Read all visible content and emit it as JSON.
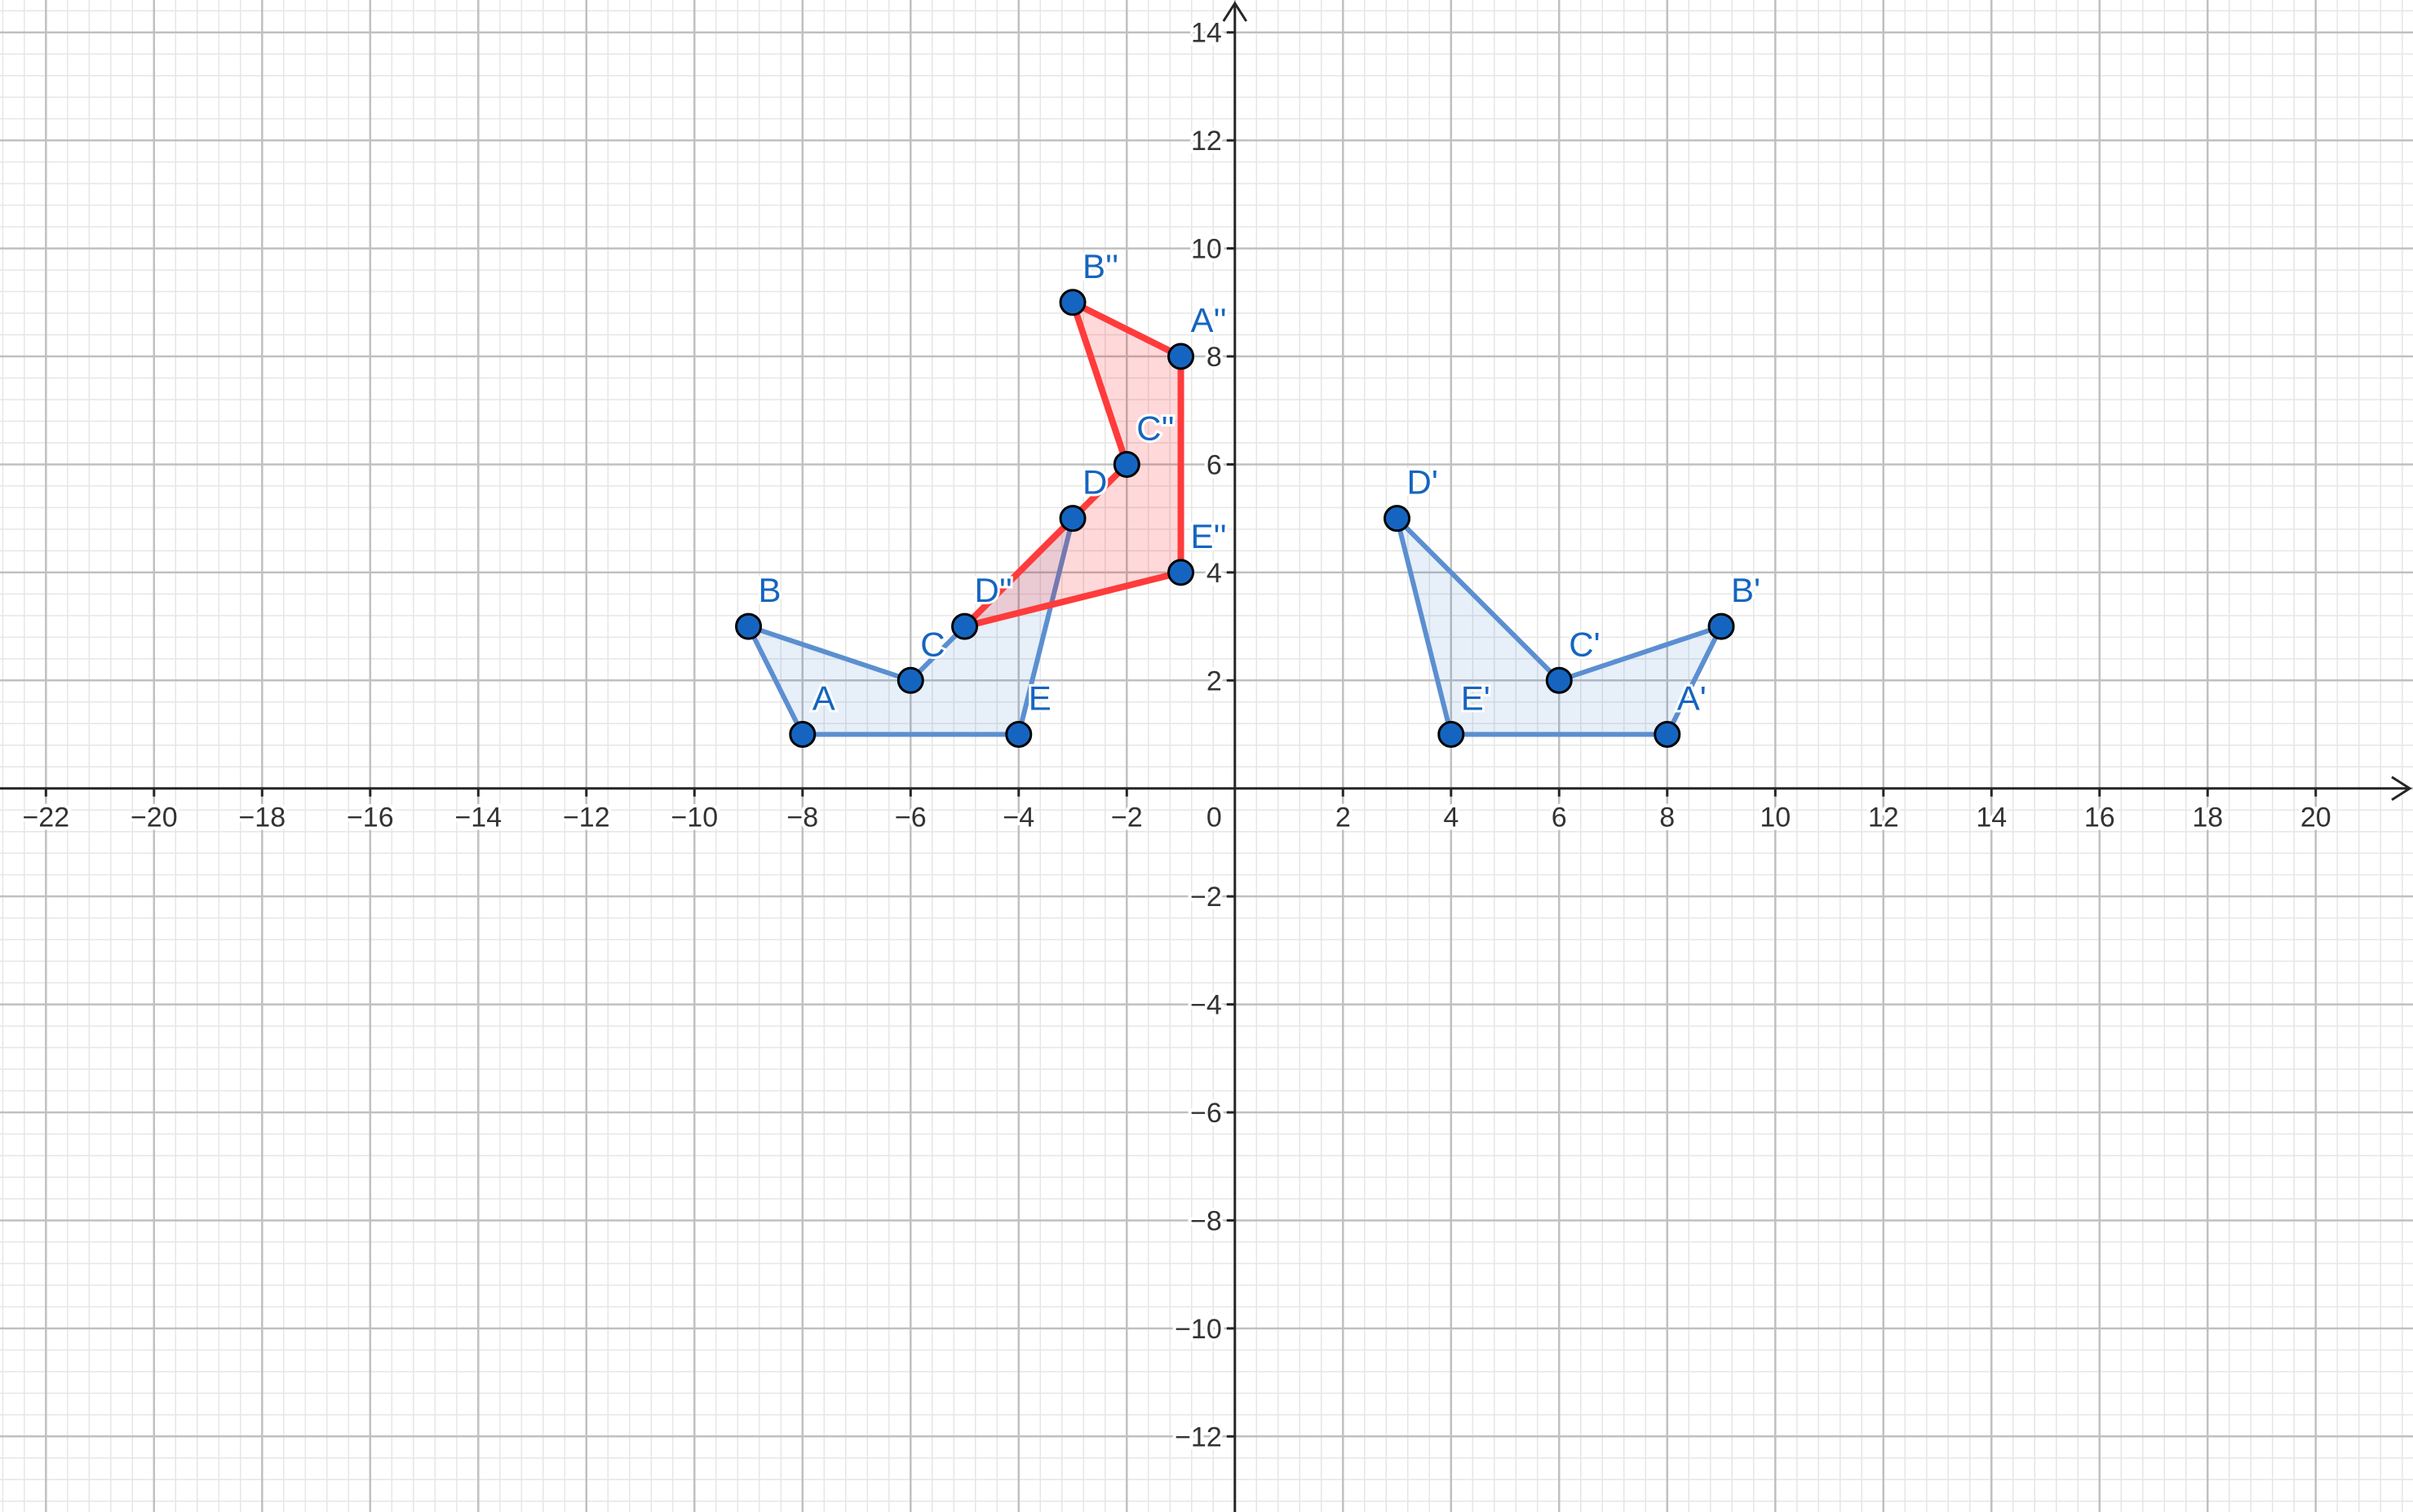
{
  "chart_data": {
    "type": "scatter",
    "title": "",
    "xlim": [
      -22.85,
      21.8
    ],
    "ylim": [
      -13.4,
      14.6
    ],
    "grid": true,
    "major_step": 2,
    "minor_subdivisions": 5,
    "x_ticks": [
      -22,
      -20,
      -18,
      -16,
      -14,
      -12,
      -10,
      -8,
      -6,
      -4,
      -2,
      2,
      4,
      6,
      8,
      10,
      12,
      14,
      16,
      18,
      20
    ],
    "y_ticks": [
      -12,
      -10,
      -8,
      -6,
      -4,
      -2,
      2,
      4,
      6,
      8,
      10,
      12,
      14
    ],
    "origin_label": "0",
    "polygons": [
      {
        "name": "original",
        "color": "#1565c0",
        "stroke": "#5b8fd0",
        "points": [
          {
            "label": "A",
            "x": -8,
            "y": 1
          },
          {
            "label": "B",
            "x": -9,
            "y": 3
          },
          {
            "label": "C",
            "x": -6,
            "y": 2
          },
          {
            "label": "D",
            "x": -3,
            "y": 5
          },
          {
            "label": "E",
            "x": -4,
            "y": 1
          }
        ]
      },
      {
        "name": "reflection-y-axis",
        "color": "#1565c0",
        "stroke": "#5b8fd0",
        "points": [
          {
            "label": "A'",
            "x": 8,
            "y": 1
          },
          {
            "label": "B'",
            "x": 9,
            "y": 3
          },
          {
            "label": "C'",
            "x": 6,
            "y": 2
          },
          {
            "label": "D'",
            "x": 3,
            "y": 5
          },
          {
            "label": "E'",
            "x": 4,
            "y": 1
          }
        ]
      },
      {
        "name": "reflection-y-eq-neg-x",
        "color": "#ff0000",
        "stroke": "#ff3b3b",
        "points": [
          {
            "label": "A''",
            "x": -1,
            "y": 8
          },
          {
            "label": "B''",
            "x": -3,
            "y": 9
          },
          {
            "label": "C''",
            "x": -2,
            "y": 6
          },
          {
            "label": "D''",
            "x": -5,
            "y": 3
          },
          {
            "label": "E''",
            "x": -1,
            "y": 4
          }
        ]
      }
    ]
  }
}
